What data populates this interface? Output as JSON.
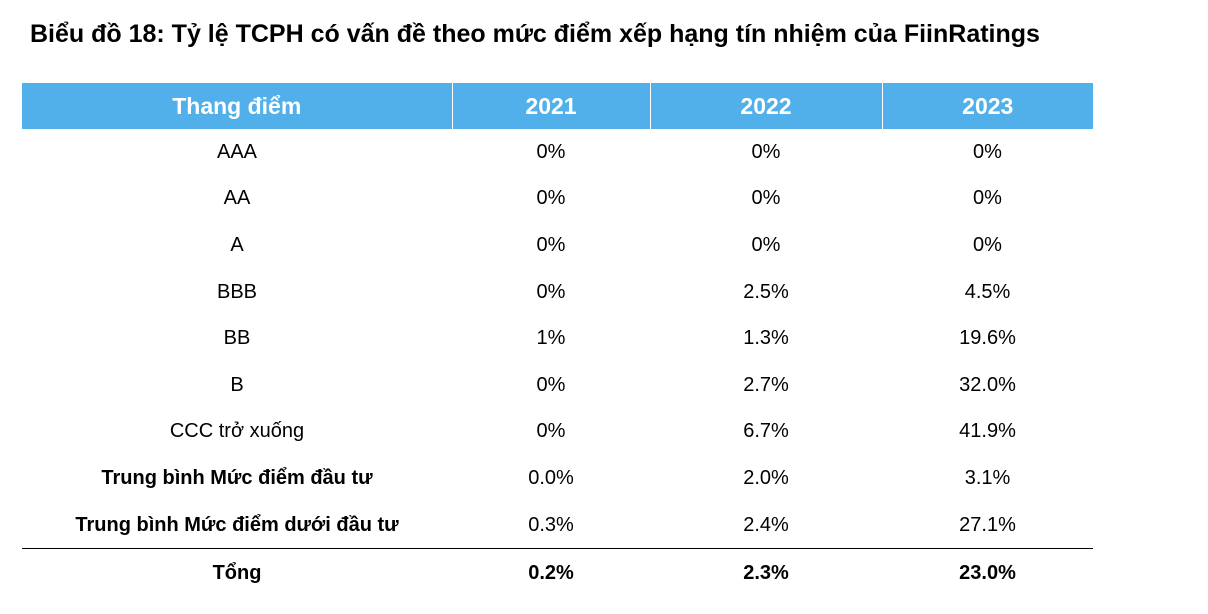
{
  "title": "Biểu đồ 18: Tỷ lệ TCPH có vấn đề theo mức điểm xếp hạng tín nhiệm của FiinRatings",
  "table": {
    "headers": [
      "Thang điểm",
      "2021",
      "2022",
      "2023"
    ],
    "rows": [
      {
        "label": "AAA",
        "values": [
          "0%",
          "0%",
          "0%"
        ]
      },
      {
        "label": "AA",
        "values": [
          "0%",
          "0%",
          "0%"
        ]
      },
      {
        "label": "A",
        "values": [
          "0%",
          "0%",
          "0%"
        ]
      },
      {
        "label": "BBB",
        "values": [
          "0%",
          "2.5%",
          "4.5%"
        ]
      },
      {
        "label": "BB",
        "values": [
          "1%",
          "1.3%",
          "19.6%"
        ]
      },
      {
        "label": "B",
        "values": [
          "0%",
          "2.7%",
          "32.0%"
        ]
      },
      {
        "label": "CCC trở xuống",
        "values": [
          "0%",
          "6.7%",
          "41.9%"
        ]
      },
      {
        "label": "Trung bình Mức điểm đầu tư",
        "values": [
          "0.0%",
          "2.0%",
          "3.1%"
        ]
      },
      {
        "label": "Trung bình Mức điểm dưới đầu tư",
        "values": [
          "0.3%",
          "2.4%",
          "27.1%"
        ]
      }
    ],
    "total": {
      "label": "Tổng",
      "values": [
        "0.2%",
        "2.3%",
        "23.0%"
      ]
    }
  },
  "colors": {
    "header_background": "#51b0ea",
    "header_text": "#ffffff"
  }
}
